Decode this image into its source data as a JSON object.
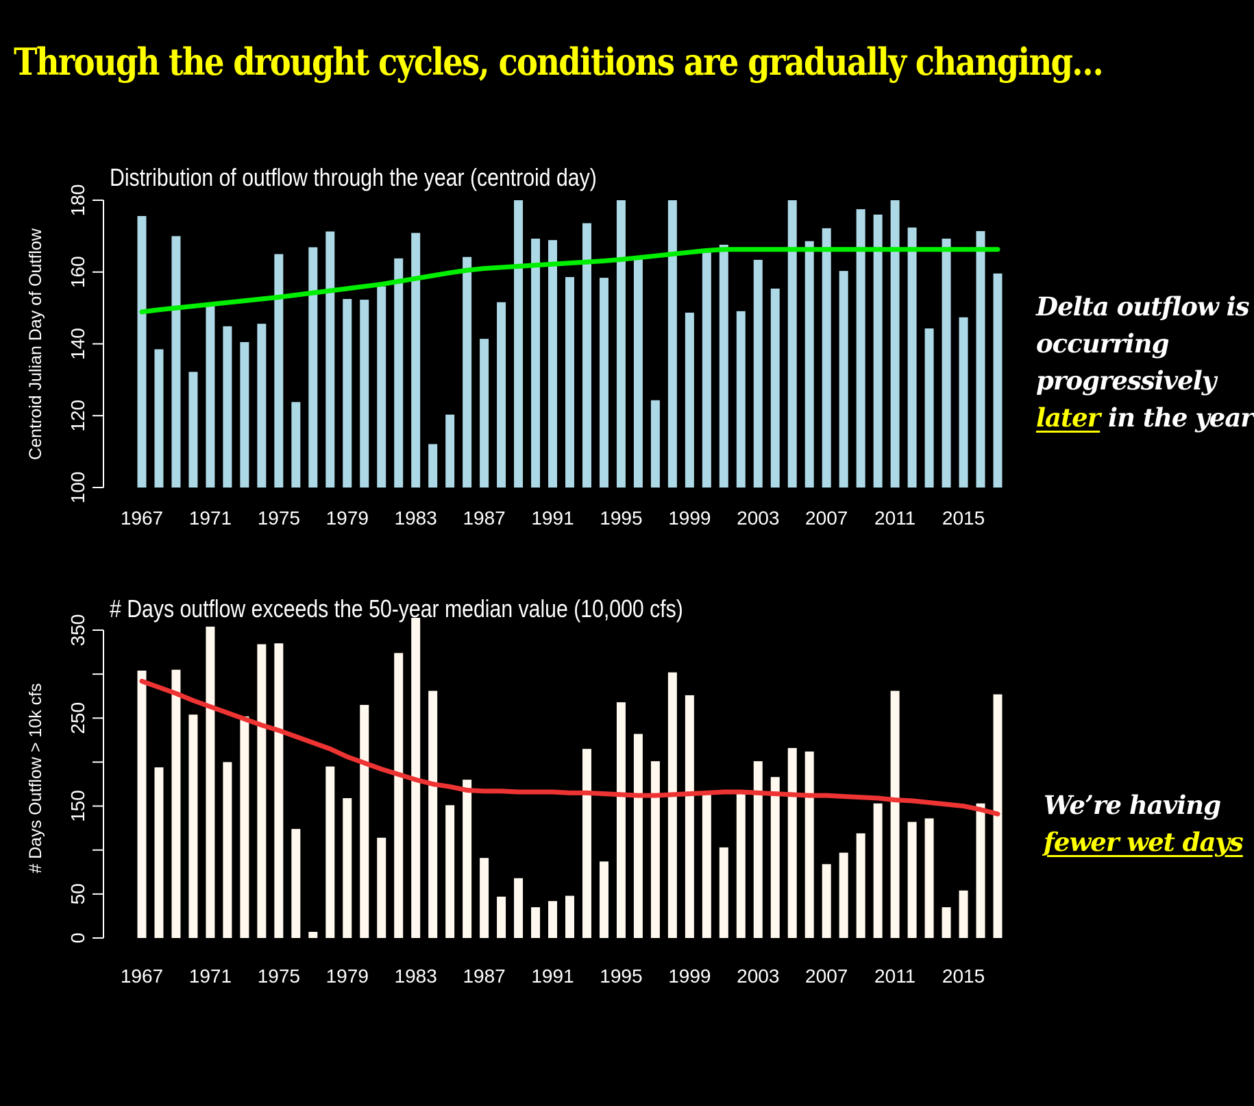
{
  "slide_title": "Through the drought cycles, conditions are gradually changing…",
  "colors": {
    "background": "#000000",
    "title": "#ffff00",
    "top_bars": "#add8e6",
    "top_trend": "#00ee00",
    "bottom_bars": "#fff8ee",
    "bottom_trend": "#ee3333",
    "highlight": "#ffff00"
  },
  "annotations": {
    "top": {
      "lines": [
        "Delta outflow is",
        "occurring",
        "progressively"
      ],
      "highlight": "later",
      "tail": " in the year"
    },
    "bottom": {
      "line1": "We’re having",
      "highlight": "fewer wet days"
    }
  },
  "chart_data": [
    {
      "type": "bar",
      "title": "Distribution of outflow through the year (centroid day)",
      "xlabel": "",
      "ylabel": "Centroid Julian Day of Outflow",
      "ylim": [
        100,
        180
      ],
      "yticks": [
        100,
        120,
        140,
        160,
        180
      ],
      "xtick_labels": [
        "1967",
        "1971",
        "1975",
        "1979",
        "1983",
        "1987",
        "1991",
        "1995",
        "1999",
        "2003",
        "2007",
        "2011",
        "2015"
      ],
      "grid": false,
      "categories": [
        1967,
        1968,
        1969,
        1970,
        1971,
        1972,
        1973,
        1974,
        1975,
        1976,
        1977,
        1978,
        1979,
        1980,
        1981,
        1982,
        1983,
        1984,
        1985,
        1986,
        1987,
        1988,
        1989,
        1990,
        1991,
        1992,
        1993,
        1994,
        1995,
        1996,
        1997,
        1998,
        1999,
        2000,
        2001,
        2002,
        2003,
        2004,
        2005,
        2006,
        2007,
        2008,
        2009,
        2010,
        2011,
        2012,
        2013,
        2014,
        2015,
        2016,
        2017
      ],
      "series": [
        {
          "name": "Centroid day",
          "type": "bar",
          "values": [
            175.6,
            138.5,
            170.0,
            132.2,
            150.6,
            144.9,
            140.5,
            145.6,
            165.0,
            123.8,
            166.9,
            171.3,
            152.5,
            152.3,
            156.0,
            163.8,
            170.9,
            112.1,
            120.3,
            164.2,
            141.4,
            151.6,
            180.0,
            169.3,
            168.9,
            158.6,
            173.6,
            158.4,
            180.0,
            163.8,
            124.3,
            180.0,
            148.7,
            165.6,
            167.6,
            149.1,
            163.4,
            155.4,
            180.0,
            168.6,
            172.2,
            160.3,
            177.5,
            176.0,
            180.0,
            172.4,
            144.3,
            169.3,
            147.4,
            171.4,
            159.6
          ]
        },
        {
          "name": "Smoothed trend",
          "type": "line",
          "values": [
            148.9,
            149.5,
            150.0,
            150.5,
            151.0,
            151.5,
            152.0,
            152.5,
            153.0,
            153.6,
            154.2,
            154.8,
            155.4,
            156.0,
            156.6,
            157.4,
            158.2,
            159.0,
            159.8,
            160.5,
            161.0,
            161.3,
            161.6,
            161.9,
            162.2,
            162.5,
            162.8,
            163.1,
            163.5,
            164.0,
            164.5,
            165.0,
            165.5,
            166.0,
            166.3,
            166.3,
            166.3,
            166.3,
            166.3,
            166.3,
            166.3,
            166.3,
            166.3,
            166.3,
            166.3,
            166.3,
            166.3,
            166.3,
            166.3,
            166.3,
            166.3
          ]
        }
      ]
    },
    {
      "type": "bar",
      "title": "# Days outflow exceeds the 50-year median value (10,000 cfs)",
      "xlabel": "",
      "ylabel": "# Days Outflow > 10k cfs",
      "ylim": [
        0,
        350
      ],
      "yticks": [
        0,
        50,
        100,
        150,
        200,
        250,
        300,
        350
      ],
      "ytick_labels": [
        "0",
        "50",
        "",
        "150",
        "",
        "250",
        "",
        "350"
      ],
      "xtick_labels": [
        "1967",
        "1971",
        "1975",
        "1979",
        "1983",
        "1987",
        "1991",
        "1995",
        "1999",
        "2003",
        "2007",
        "2011",
        "2015"
      ],
      "grid": false,
      "categories": [
        1967,
        1968,
        1969,
        1970,
        1971,
        1972,
        1973,
        1974,
        1975,
        1976,
        1977,
        1978,
        1979,
        1980,
        1981,
        1982,
        1983,
        1984,
        1985,
        1986,
        1987,
        1988,
        1989,
        1990,
        1991,
        1992,
        1993,
        1994,
        1995,
        1996,
        1997,
        1998,
        1999,
        2000,
        2001,
        2002,
        2003,
        2004,
        2005,
        2006,
        2007,
        2008,
        2009,
        2010,
        2011,
        2012,
        2013,
        2014,
        2015,
        2016,
        2017
      ],
      "series": [
        {
          "name": "# Days > 10k cfs",
          "type": "bar",
          "values": [
            304,
            194,
            305,
            254,
            354,
            200,
            252,
            334,
            335,
            124,
            7,
            195,
            159,
            265,
            114,
            324,
            364,
            281,
            151,
            180,
            91,
            47,
            68,
            35,
            42,
            48,
            215,
            87,
            268,
            232,
            201,
            302,
            276,
            166,
            103,
            164,
            201,
            183,
            216,
            212,
            84,
            97,
            119,
            153,
            281,
            132,
            136,
            35,
            54,
            153,
            277
          ]
        },
        {
          "name": "Smoothed trend",
          "type": "line",
          "values": [
            292,
            285,
            278,
            270,
            263,
            256,
            249,
            242,
            236,
            229,
            222,
            215,
            206,
            199,
            192,
            186,
            180,
            175,
            172,
            168,
            167,
            167,
            166,
            166,
            166,
            165,
            165,
            164,
            163,
            162,
            162,
            163,
            164,
            165,
            166,
            166,
            165,
            164,
            163,
            162,
            162,
            161,
            160,
            159,
            157,
            156,
            154,
            152,
            150,
            146,
            141
          ]
        }
      ]
    }
  ]
}
